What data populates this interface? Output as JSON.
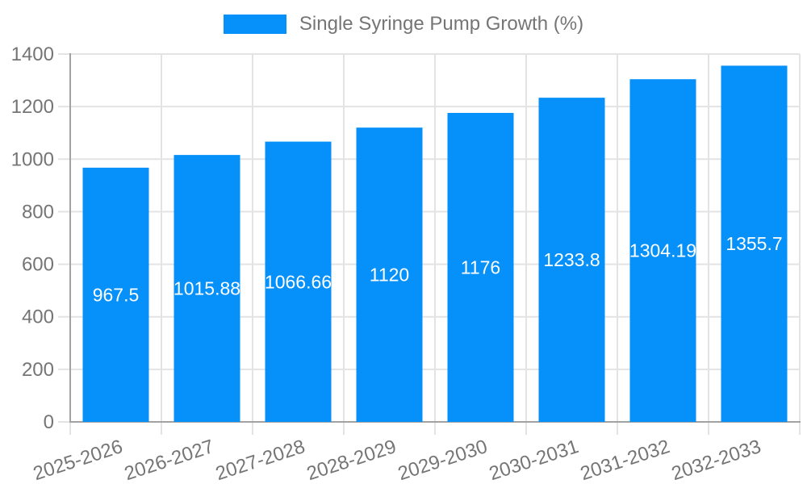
{
  "legend": {
    "label": "Single Syringe Pump Growth (%)"
  },
  "chart_data": {
    "type": "bar",
    "title": "Single Syringe Pump Growth (%)",
    "categories": [
      "2025-2026",
      "2026-2027",
      "2027-2028",
      "2028-2029",
      "2029-2030",
      "2030-2031",
      "2031-2032",
      "2032-2033"
    ],
    "values": [
      967.5,
      1015.88,
      1066.66,
      1120,
      1176,
      1233.8,
      1304.19,
      1355.7
    ],
    "xlabel": "",
    "ylabel": "",
    "ylim": [
      0,
      1400
    ],
    "ytick_step": 200,
    "yticks": [
      0,
      200,
      400,
      600,
      800,
      1000,
      1200,
      1400
    ],
    "grid": true,
    "legend_position": "top",
    "colors": {
      "bar": "#0590fa",
      "grid": "#e3e3e3",
      "axis": "#a2a2a2",
      "tick_label": "#757575",
      "value_label": "#ffffff",
      "background": "#ffffff"
    }
  }
}
